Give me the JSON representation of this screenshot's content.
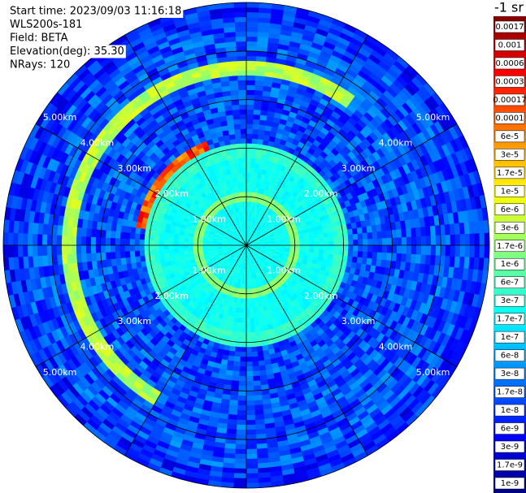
{
  "chart_data": {
    "type": "polar-field",
    "info": [
      "Start time: 2023/09/03 11:16:18",
      "WLS200s-181",
      "Field: BETA",
      "Elevation(deg): 35.30",
      "NRays: 120"
    ],
    "colorbar_title": "-1 sr",
    "rlim": [
      0,
      5
    ],
    "rticks": [
      {
        "value": 1,
        "label": "1.00km"
      },
      {
        "value": 2,
        "label": "2.00km"
      },
      {
        "value": 3,
        "label": "3.00km"
      },
      {
        "value": 4,
        "label": "4.00km"
      },
      {
        "value": 5,
        "label": "5.00km"
      }
    ],
    "colorbar_ticks": [
      {
        "value": 0.0017,
        "label": "0.0017"
      },
      {
        "value": 0.001,
        "label": "0.001"
      },
      {
        "value": 0.0006,
        "label": "0.0006"
      },
      {
        "value": 0.0003,
        "label": "0.0003"
      },
      {
        "value": 0.00017,
        "label": "0.00017"
      },
      {
        "value": 0.0001,
        "label": "0.0001"
      },
      {
        "value": 6e-05,
        "label": "6e-5"
      },
      {
        "value": 3e-05,
        "label": "3e-5"
      },
      {
        "value": 1.7e-05,
        "label": "1.7e-5"
      },
      {
        "value": 1e-05,
        "label": "1e-5"
      },
      {
        "value": 6e-06,
        "label": "6e-6"
      },
      {
        "value": 3e-06,
        "label": "3e-6"
      },
      {
        "value": 1.7e-06,
        "label": "1.7e-6"
      },
      {
        "value": 1e-06,
        "label": "1e-6"
      },
      {
        "value": 6e-07,
        "label": "6e-7"
      },
      {
        "value": 3e-07,
        "label": "3e-7"
      },
      {
        "value": 1.7e-07,
        "label": "1.7e-7"
      },
      {
        "value": 1e-07,
        "label": "1e-7"
      },
      {
        "value": 6e-08,
        "label": "6e-8"
      },
      {
        "value": 3e-08,
        "label": "3e-8"
      },
      {
        "value": 1.7e-08,
        "label": "1.7e-8"
      },
      {
        "value": 1e-08,
        "label": "1e-8"
      },
      {
        "value": 6e-09,
        "label": "6e-9"
      },
      {
        "value": 3e-09,
        "label": "3e-9"
      },
      {
        "value": 1.7e-09,
        "label": "1.7e-9"
      },
      {
        "value": 1e-09,
        "label": "1e-9"
      }
    ]
  }
}
